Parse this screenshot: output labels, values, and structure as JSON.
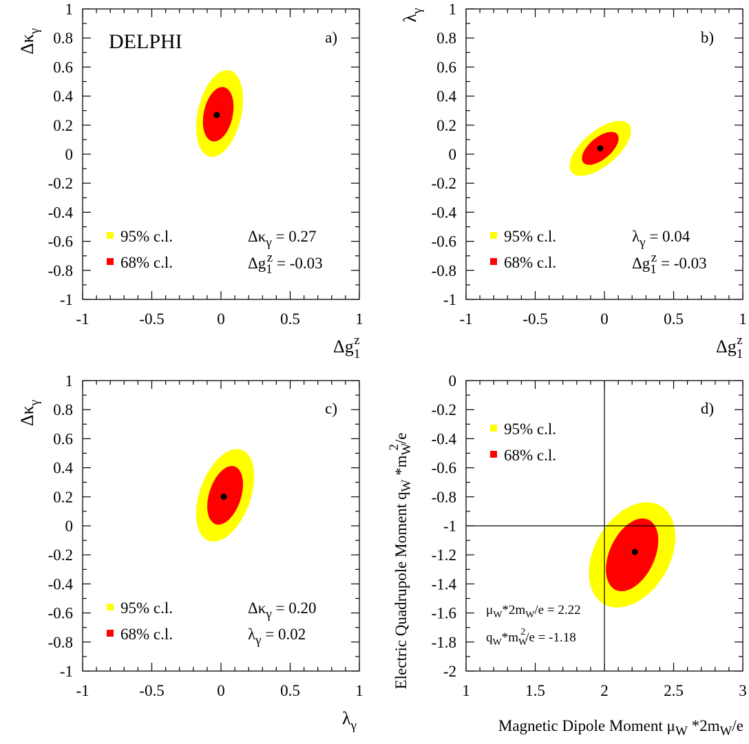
{
  "colors": {
    "cl95": "#ffff00",
    "cl68": "#ff0000",
    "axis": "#000000",
    "best_fit": "#000000"
  },
  "experiment_label": "DELPHI",
  "legend": {
    "cl95": "95% c.l.",
    "cl68": "68% c.l."
  },
  "chart_data": [
    {
      "panel": "a)",
      "type": "scatter",
      "xlabel": "Δg1z",
      "ylabel": "Δκγ",
      "xlim": [
        -1,
        1
      ],
      "ylim": [
        -1,
        1
      ],
      "x_ticks": [
        "-1",
        "-0.5",
        "0",
        "0.5",
        "1"
      ],
      "y_ticks": [
        "-1",
        "-0.8",
        "-0.6",
        "-0.4",
        "-0.2",
        "0",
        "0.2",
        "0.4",
        "0.6",
        "0.8",
        "1"
      ],
      "best_fit": {
        "x": -0.03,
        "y": 0.27
      },
      "annotations": [
        "Δκγ = 0.27",
        "Δg1z = -0.03"
      ],
      "contours": [
        {
          "name": "95% c.l.",
          "center": [
            -0.01,
            0.28
          ],
          "semi_major": 0.32,
          "semi_minor": 0.15,
          "angle_deg": -77
        },
        {
          "name": "68% c.l.",
          "center": [
            -0.02,
            0.275
          ],
          "semi_major": 0.2,
          "semi_minor": 0.1,
          "angle_deg": -78
        }
      ],
      "legend_position": "bottom-left"
    },
    {
      "panel": "b)",
      "type": "scatter",
      "xlabel": "Δg1z",
      "ylabel": "λγ",
      "xlim": [
        -1,
        1
      ],
      "ylim": [
        -1,
        1
      ],
      "x_ticks": [
        "-1",
        "-0.5",
        "0",
        "0.5",
        "1"
      ],
      "y_ticks": [
        "-1",
        "-0.8",
        "-0.6",
        "-0.4",
        "-0.2",
        "0",
        "0.2",
        "0.4",
        "0.6",
        "0.8",
        "1"
      ],
      "best_fit": {
        "x": -0.03,
        "y": 0.04
      },
      "annotations": [
        "λγ = 0.04",
        "Δg1z = -0.03"
      ],
      "contours": [
        {
          "name": "95% c.l.",
          "center": [
            -0.03,
            0.04
          ],
          "semi_major": 0.27,
          "semi_minor": 0.12,
          "angle_deg": -40
        },
        {
          "name": "68% c.l.",
          "center": [
            -0.03,
            0.04
          ],
          "semi_major": 0.16,
          "semi_minor": 0.075,
          "angle_deg": -40
        }
      ],
      "legend_position": "bottom-left"
    },
    {
      "panel": "c)",
      "type": "scatter",
      "xlabel": "λγ",
      "ylabel": "Δκγ",
      "xlim": [
        -1,
        1
      ],
      "ylim": [
        -1,
        1
      ],
      "x_ticks": [
        "-1",
        "-0.5",
        "0",
        "0.5",
        "1"
      ],
      "y_ticks": [
        "-1",
        "-0.8",
        "-0.6",
        "-0.4",
        "-0.2",
        "0",
        "0.2",
        "0.4",
        "0.6",
        "0.8",
        "1"
      ],
      "best_fit": {
        "x": 0.02,
        "y": 0.2
      },
      "annotations": [
        "Δκγ = 0.20",
        "λγ = 0.02"
      ],
      "contours": [
        {
          "name": "95% c.l.",
          "center": [
            0.03,
            0.21
          ],
          "semi_major": 0.35,
          "semi_minor": 0.175,
          "angle_deg": -70
        },
        {
          "name": "68% c.l.",
          "center": [
            0.03,
            0.21
          ],
          "semi_major": 0.22,
          "semi_minor": 0.11,
          "angle_deg": -72
        }
      ],
      "legend_position": "bottom-left"
    },
    {
      "panel": "d)",
      "type": "scatter",
      "xlabel": "Magnetic Dipole Moment μW *2mW/e",
      "ylabel": "Electric Quadrupole Moment qW *mW2/e",
      "xlim": [
        1,
        3
      ],
      "ylim": [
        -2,
        0
      ],
      "x_ticks": [
        "1",
        "1.5",
        "2",
        "2.5",
        "3"
      ],
      "y_ticks": [
        "-2",
        "-1.8",
        "-1.6",
        "-1.4",
        "-1.2",
        "-1",
        "-0.8",
        "-0.6",
        "-0.4",
        "-0.2",
        "0"
      ],
      "reference_lines": {
        "x": 2,
        "y": -1
      },
      "best_fit": {
        "x": 2.22,
        "y": -1.18
      },
      "annotations": [
        "μW*2mW/e = 2.22",
        "qW*mW2/e = -1.18"
      ],
      "contours": [
        {
          "name": "95% c.l.",
          "center": [
            2.2,
            -1.2
          ],
          "semi_major": 0.41,
          "semi_minor": 0.26,
          "angle_deg": -60
        },
        {
          "name": "68% c.l.",
          "center": [
            2.2,
            -1.2
          ],
          "semi_major": 0.28,
          "semi_minor": 0.155,
          "angle_deg": -65
        }
      ],
      "legend_position": "top-left"
    }
  ]
}
